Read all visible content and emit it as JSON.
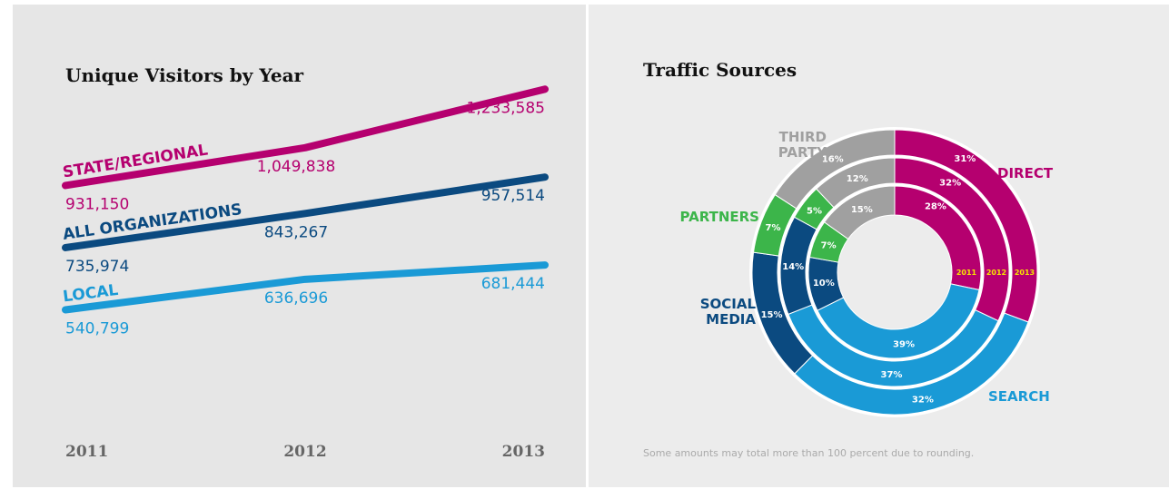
{
  "chart_data": [
    {
      "type": "line",
      "title": "Unique Visitors by Year",
      "categories": [
        "2011",
        "2012",
        "2013"
      ],
      "ylim": [
        300000,
        1300000
      ],
      "series": [
        {
          "name": "STATE/REGIONAL",
          "color": "#b5006f",
          "values": [
            931150,
            1049838,
            1233585
          ],
          "value_labels": [
            "931,150",
            "1,049,838",
            "1,233,585"
          ]
        },
        {
          "name": "ALL ORGANIZATIONS",
          "color": "#0b4a80",
          "values": [
            735974,
            843267,
            957514
          ],
          "value_labels": [
            "735,974",
            "843,267",
            "957,514"
          ]
        },
        {
          "name": "LOCAL",
          "color": "#1a9ad6",
          "values": [
            540799,
            636696,
            681444
          ],
          "value_labels": [
            "540,799",
            "636,696",
            "681,444"
          ]
        }
      ]
    },
    {
      "type": "donut",
      "title": "Traffic Sources",
      "categories": [
        "DIRECT",
        "SEARCH",
        "SOCIAL MEDIA",
        "PARTNERS",
        "THIRD PARTY"
      ],
      "colors": [
        "#b5006f",
        "#1a9ad6",
        "#0b4a80",
        "#3cb54a",
        "#a0a0a0"
      ],
      "rings": [
        {
          "name": "2011",
          "values": [
            28,
            39,
            10,
            7,
            15
          ],
          "value_labels": [
            "28%",
            "39%",
            "10%",
            "7%",
            "15%"
          ]
        },
        {
          "name": "2012",
          "values": [
            32,
            37,
            14,
            5,
            12
          ],
          "value_labels": [
            "32%",
            "37%",
            "14%",
            "5%",
            "12%"
          ]
        },
        {
          "name": "2013",
          "values": [
            31,
            32,
            15,
            7,
            16
          ],
          "value_labels": [
            "31%",
            "32%",
            "15%",
            "7%",
            "16%"
          ]
        }
      ],
      "note": "Some amounts may total more than 100 percent due to rounding."
    }
  ]
}
